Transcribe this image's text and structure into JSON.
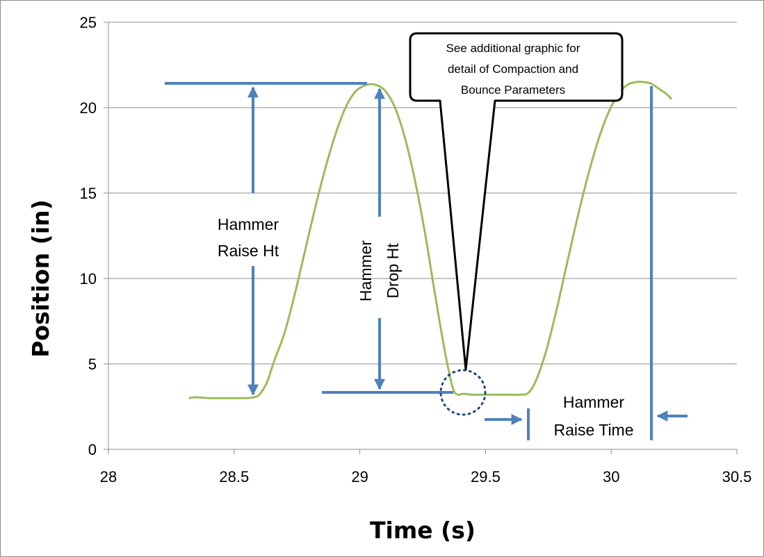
{
  "chart_data": {
    "type": "line",
    "xlabel": "Time (s)",
    "ylabel": "Position (in)",
    "xlim": [
      28,
      30.5
    ],
    "ylim": [
      0,
      25
    ],
    "x_ticks": [
      "28",
      "28.5",
      "29",
      "29.5",
      "30",
      "30.5"
    ],
    "y_ticks": [
      "0",
      "5",
      "10",
      "15",
      "20",
      "25"
    ],
    "grid": "horizontal",
    "line_color": "#9BBB59",
    "annotation_color": "#4F81BD",
    "series": [
      {
        "x": [
          28.32,
          28.35,
          28.4,
          28.45,
          28.5,
          28.55,
          28.58,
          28.6,
          28.63,
          28.66,
          28.7,
          28.74,
          28.78,
          28.82,
          28.86,
          28.9,
          28.94,
          28.98,
          29.02,
          29.06,
          29.1,
          29.14,
          29.18,
          29.22,
          29.26,
          29.3,
          29.34,
          29.37,
          29.39,
          29.41,
          29.45,
          29.5,
          29.55,
          29.6,
          29.64,
          29.67,
          29.7,
          29.74,
          29.78,
          29.82,
          29.86,
          29.9,
          29.94,
          29.98,
          30.02,
          30.06,
          30.1,
          30.13,
          30.16,
          30.19,
          30.22,
          30.24
        ],
        "y": [
          3.0,
          3.05,
          3.0,
          3.0,
          3.0,
          3.0,
          3.05,
          3.2,
          3.9,
          5.2,
          6.8,
          9.0,
          11.5,
          14.0,
          16.3,
          18.3,
          19.9,
          20.9,
          21.3,
          21.35,
          21.0,
          20.0,
          18.2,
          15.7,
          12.6,
          9.0,
          5.6,
          3.6,
          3.2,
          3.25,
          3.2,
          3.2,
          3.2,
          3.2,
          3.2,
          3.3,
          4.0,
          5.7,
          8.0,
          10.6,
          13.2,
          15.6,
          17.7,
          19.4,
          20.6,
          21.3,
          21.5,
          21.5,
          21.4,
          21.1,
          20.8,
          20.5
        ]
      }
    ],
    "annotations": {
      "raise_ht": [
        "Hammer",
        "Raise Ht"
      ],
      "drop_ht": [
        "Hammer",
        "Drop Ht"
      ],
      "raise_time": [
        "Hammer",
        "Raise Time"
      ],
      "callout": [
        "See additional graphic for",
        "detail of Compaction and",
        "Bounce Parameters"
      ]
    }
  }
}
